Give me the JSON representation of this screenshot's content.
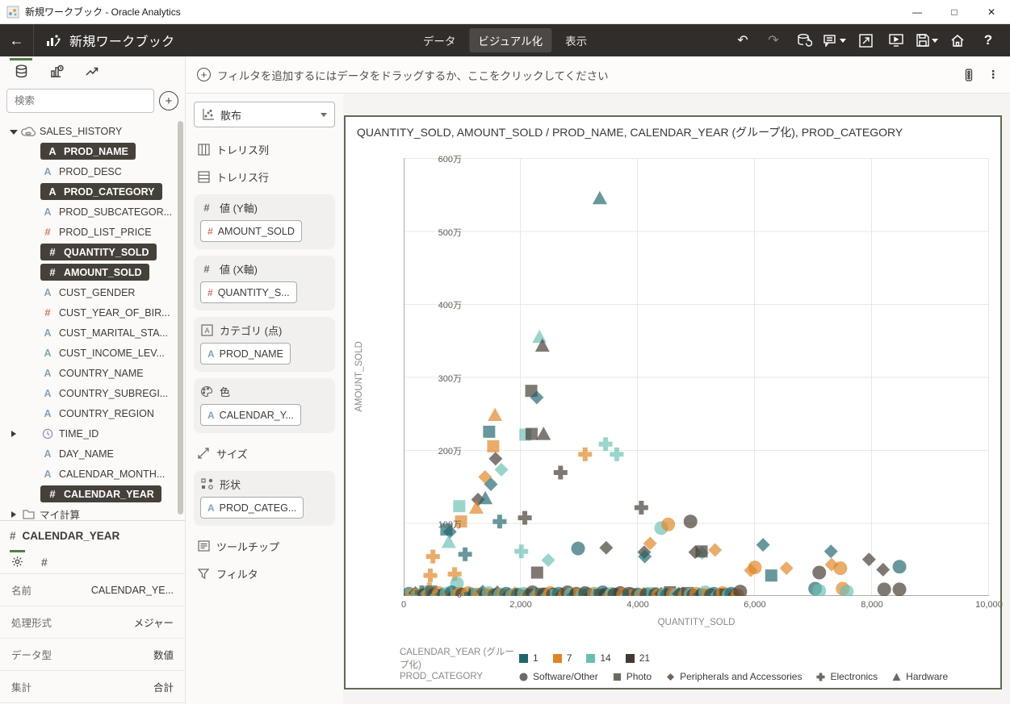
{
  "window": {
    "title": "新規ワークブック - Oracle Analytics",
    "controls": {
      "minimize": "—",
      "maximize": "□",
      "close": "✕"
    }
  },
  "header": {
    "title": "新規ワークブック",
    "tabs": [
      {
        "label": "データ",
        "active": false
      },
      {
        "label": "ビジュアル化",
        "active": true
      },
      {
        "label": "表示",
        "active": false
      }
    ],
    "icons": [
      "undo",
      "redo",
      "refresh-data",
      "comment",
      "open-window",
      "present",
      "save",
      "home",
      "help"
    ]
  },
  "sidebar": {
    "search_placeholder": "検索",
    "fields": [
      {
        "label": "SALES_HISTORY",
        "icon": "dataset",
        "caret": "down",
        "indent": 0,
        "selected": false
      },
      {
        "label": "PROD_NAME",
        "icon": "text",
        "indent": 1,
        "selected": true
      },
      {
        "label": "PROD_DESC",
        "icon": "text",
        "indent": 1,
        "selected": false
      },
      {
        "label": "PROD_CATEGORY",
        "icon": "text",
        "indent": 1,
        "selected": true
      },
      {
        "label": "PROD_SUBCATEGOR...",
        "icon": "text",
        "indent": 1,
        "selected": false
      },
      {
        "label": "PROD_LIST_PRICE",
        "icon": "number",
        "indent": 1,
        "selected": false
      },
      {
        "label": "QUANTITY_SOLD",
        "icon": "number",
        "indent": 1,
        "selected": true
      },
      {
        "label": "AMOUNT_SOLD",
        "icon": "number",
        "indent": 1,
        "selected": true
      },
      {
        "label": "CUST_GENDER",
        "icon": "text",
        "indent": 1,
        "selected": false
      },
      {
        "label": "CUST_YEAR_OF_BIR...",
        "icon": "number",
        "indent": 1,
        "selected": false
      },
      {
        "label": "CUST_MARITAL_STA...",
        "icon": "text",
        "indent": 1,
        "selected": false
      },
      {
        "label": "CUST_INCOME_LEV...",
        "icon": "text",
        "indent": 1,
        "selected": false
      },
      {
        "label": "COUNTRY_NAME",
        "icon": "text",
        "indent": 1,
        "selected": false
      },
      {
        "label": "COUNTRY_SUBREGI...",
        "icon": "text",
        "indent": 1,
        "selected": false
      },
      {
        "label": "COUNTRY_REGION",
        "icon": "text",
        "indent": 1,
        "selected": false
      },
      {
        "label": "TIME_ID",
        "icon": "time",
        "caret": "right",
        "indent": 1,
        "selected": false
      },
      {
        "label": "DAY_NAME",
        "icon": "text",
        "indent": 1,
        "selected": false
      },
      {
        "label": "CALENDAR_MONTH...",
        "icon": "text",
        "indent": 1,
        "selected": false
      },
      {
        "label": "CALENDAR_YEAR",
        "icon": "number",
        "indent": 1,
        "selected": true
      },
      {
        "label": "マイ計算",
        "icon": "folder",
        "caret": "right",
        "indent": 0,
        "selected": false
      }
    ]
  },
  "properties": {
    "title": "CALENDAR_YEAR",
    "rows": [
      {
        "label": "名前",
        "value": "CALENDAR_YE..."
      },
      {
        "label": "処理形式",
        "value": "メジャー"
      },
      {
        "label": "データ型",
        "value": "数値"
      },
      {
        "label": "集計",
        "value": "合計"
      }
    ]
  },
  "filter_bar": {
    "text": "フィルタを追加するにはデータをドラッグするか、ここをクリックしてください"
  },
  "grammar": {
    "viz_type": "散布",
    "shelves": [
      {
        "label": "トレリス列",
        "icon": "trellis-columns",
        "boxed": false,
        "pills": []
      },
      {
        "label": "トレリス行",
        "icon": "trellis-rows",
        "boxed": false,
        "pills": []
      },
      {
        "label": "値 (Y軸)",
        "icon": "number",
        "boxed": true,
        "pills": [
          {
            "icon": "number",
            "text": "AMOUNT_SOLD"
          }
        ]
      },
      {
        "label": "値 (X軸)",
        "icon": "number",
        "boxed": true,
        "pills": [
          {
            "icon": "number",
            "text": "QUANTITY_S..."
          }
        ]
      },
      {
        "label": "カテゴリ (点)",
        "icon": "category",
        "boxed": true,
        "pills": [
          {
            "icon": "text",
            "text": "PROD_NAME"
          }
        ]
      },
      {
        "label": "色",
        "icon": "color",
        "boxed": true,
        "pills": [
          {
            "icon": "text",
            "text": "CALENDAR_Y..."
          }
        ]
      },
      {
        "label": "サイズ",
        "icon": "size",
        "boxed": false,
        "pills": []
      },
      {
        "label": "形状",
        "icon": "shape",
        "boxed": true,
        "pills": [
          {
            "icon": "text",
            "text": "PROD_CATEG..."
          }
        ]
      },
      {
        "label": "ツールチップ",
        "icon": "tooltip",
        "boxed": false,
        "pills": []
      },
      {
        "label": "フィルタ",
        "icon": "filter",
        "boxed": false,
        "pills": []
      }
    ]
  },
  "colors": {
    "header_bg": "#312d2a",
    "accent_green": "#567c49",
    "selection_dark": "#45403a",
    "field_text_blue": "#84a3bd",
    "field_number_salmon": "#d3766d",
    "card_border": "#5e6b52"
  },
  "chart_data": {
    "type": "scatter",
    "title": "QUANTITY_SOLD, AMOUNT_SOLD / PROD_NAME, CALENDAR_YEAR (グループ化), PROD_CATEGORY",
    "xlabel": "QUANTITY_SOLD",
    "ylabel": "AMOUNT_SOLD",
    "xlim": [
      0,
      10000
    ],
    "ylim_10k": [
      0,
      600
    ],
    "x_ticks": [
      "0",
      "2,000",
      "4,000",
      "6,000",
      "8,000",
      "10,000"
    ],
    "y_ticks": [
      "0",
      "100万",
      "200万",
      "300万",
      "400万",
      "500万",
      "600万"
    ],
    "grid": true,
    "point_opacity": 0.68,
    "color_legend": {
      "label": "CALENDAR_YEAR (グループ化)",
      "entries": [
        {
          "label": "1",
          "color": "#21666F"
        },
        {
          "label": "7",
          "color": "#DE8425"
        },
        {
          "label": "14",
          "color": "#6BBFB2"
        },
        {
          "label": "21",
          "color": "#443931"
        }
      ]
    },
    "shape_legend": {
      "label": "PROD_CATEGORY",
      "entries": [
        {
          "label": "Software/Other",
          "shape": "circle"
        },
        {
          "label": "Photo",
          "shape": "square"
        },
        {
          "label": "Peripherals and Accessories",
          "shape": "diamond"
        },
        {
          "label": "Electronics",
          "shape": "plus"
        },
        {
          "label": "Hardware",
          "shape": "triangle"
        }
      ]
    },
    "point_format": [
      "quantity_sold",
      "amount_sold_in_10k_yen",
      "color_index_of_calendar_year_group",
      "shape_index_of_prod_category"
    ],
    "points": [
      [
        3350,
        545,
        0,
        4
      ],
      [
        2320,
        355,
        2,
        4
      ],
      [
        2370,
        343,
        3,
        4
      ],
      [
        2180,
        281,
        3,
        1
      ],
      [
        2275,
        272,
        0,
        2
      ],
      [
        1560,
        248,
        1,
        4
      ],
      [
        1460,
        225,
        0,
        1
      ],
      [
        2080,
        221,
        2,
        1
      ],
      [
        2185,
        222,
        3,
        1
      ],
      [
        2390,
        222,
        3,
        4
      ],
      [
        1530,
        205,
        1,
        1
      ],
      [
        3450,
        208,
        2,
        3
      ],
      [
        1570,
        188,
        3,
        2
      ],
      [
        3100,
        194,
        1,
        3
      ],
      [
        1670,
        173,
        2,
        2
      ],
      [
        2680,
        169,
        3,
        3
      ],
      [
        1390,
        163,
        1,
        2
      ],
      [
        1490,
        153,
        0,
        2
      ],
      [
        1270,
        132,
        3,
        2
      ],
      [
        1395,
        134,
        0,
        4
      ],
      [
        1240,
        121,
        1,
        4
      ],
      [
        950,
        123,
        2,
        1
      ],
      [
        980,
        102,
        1,
        1
      ],
      [
        1640,
        102,
        0,
        3
      ],
      [
        2070,
        107,
        3,
        3
      ],
      [
        730,
        91,
        0,
        1
      ],
      [
        790,
        88,
        0,
        2
      ],
      [
        770,
        74,
        2,
        4
      ],
      [
        1050,
        57,
        0,
        3
      ],
      [
        2010,
        61,
        2,
        3
      ],
      [
        2980,
        65,
        0,
        0
      ],
      [
        3460,
        66,
        3,
        2
      ],
      [
        2470,
        49,
        2,
        2
      ],
      [
        2280,
        32,
        3,
        1
      ],
      [
        455,
        28,
        1,
        3
      ],
      [
        870,
        30,
        1,
        3
      ],
      [
        440,
        9,
        1,
        3
      ],
      [
        500,
        54,
        1,
        3
      ],
      [
        910,
        17,
        2,
        0
      ],
      [
        3640,
        194,
        2,
        3
      ],
      [
        4060,
        121,
        3,
        3
      ],
      [
        4400,
        93,
        2,
        0
      ],
      [
        4520,
        98,
        1,
        0
      ],
      [
        4900,
        102,
        3,
        0
      ],
      [
        4210,
        72,
        1,
        2
      ],
      [
        4110,
        60,
        3,
        2
      ],
      [
        4120,
        54,
        0,
        2
      ],
      [
        4980,
        60,
        3,
        2
      ],
      [
        5100,
        59,
        2,
        2
      ],
      [
        5320,
        63,
        1,
        2
      ],
      [
        5090,
        61,
        3,
        1
      ],
      [
        6140,
        70,
        0,
        2
      ],
      [
        6000,
        39,
        1,
        0
      ],
      [
        5930,
        35,
        1,
        2
      ],
      [
        6280,
        28,
        0,
        1
      ],
      [
        6540,
        38,
        1,
        2
      ],
      [
        7100,
        32,
        3,
        0
      ],
      [
        7300,
        61,
        0,
        2
      ],
      [
        7310,
        43,
        1,
        2
      ],
      [
        7460,
        38,
        1,
        0
      ],
      [
        7950,
        50,
        3,
        2
      ],
      [
        8190,
        36,
        3,
        2
      ],
      [
        8470,
        40,
        0,
        0
      ],
      [
        7030,
        10,
        0,
        0
      ],
      [
        7100,
        7,
        2,
        0
      ],
      [
        7500,
        10,
        1,
        0
      ],
      [
        7570,
        6,
        2,
        0
      ],
      [
        8210,
        9,
        3,
        0
      ],
      [
        8470,
        9,
        3,
        0
      ],
      [
        60,
        1,
        1,
        3
      ],
      [
        90,
        3,
        0,
        0
      ],
      [
        130,
        2,
        2,
        1
      ],
      [
        160,
        1,
        1,
        0
      ],
      [
        200,
        4,
        3,
        2
      ],
      [
        230,
        1,
        2,
        0
      ],
      [
        270,
        2,
        1,
        1
      ],
      [
        310,
        5,
        0,
        3
      ],
      [
        350,
        1,
        3,
        0
      ],
      [
        390,
        3,
        2,
        2
      ],
      [
        430,
        1,
        1,
        0
      ],
      [
        470,
        6,
        0,
        1
      ],
      [
        520,
        2,
        3,
        0
      ],
      [
        560,
        1,
        2,
        2
      ],
      [
        600,
        4,
        1,
        0
      ],
      [
        650,
        2,
        0,
        2
      ],
      [
        690,
        1,
        3,
        1
      ],
      [
        730,
        3,
        2,
        0
      ],
      [
        780,
        1,
        1,
        2
      ],
      [
        820,
        5,
        0,
        0
      ],
      [
        860,
        2,
        3,
        2
      ],
      [
        900,
        1,
        2,
        1
      ],
      [
        950,
        3,
        1,
        0
      ],
      [
        1000,
        2,
        3,
        0
      ],
      [
        1050,
        1,
        2,
        2
      ],
      [
        1100,
        4,
        1,
        0
      ],
      [
        1150,
        2,
        0,
        3
      ],
      [
        1200,
        1,
        3,
        0
      ],
      [
        1250,
        3,
        2,
        1
      ],
      [
        1300,
        2,
        1,
        0
      ],
      [
        1350,
        6,
        0,
        2
      ],
      [
        1400,
        1,
        3,
        0
      ],
      [
        1450,
        4,
        2,
        0
      ],
      [
        1500,
        2,
        1,
        1
      ],
      [
        1550,
        1,
        0,
        0
      ],
      [
        1600,
        5,
        3,
        2
      ],
      [
        1650,
        2,
        2,
        0
      ],
      [
        1700,
        1,
        1,
        1
      ],
      [
        1750,
        3,
        0,
        0
      ],
      [
        1800,
        2,
        3,
        2
      ],
      [
        1850,
        1,
        2,
        0
      ],
      [
        1900,
        4,
        1,
        2
      ],
      [
        1950,
        2,
        0,
        0
      ],
      [
        2000,
        1,
        3,
        1
      ],
      [
        2050,
        3,
        2,
        0
      ],
      [
        2100,
        2,
        1,
        2
      ],
      [
        2150,
        1,
        0,
        0
      ],
      [
        2200,
        5,
        3,
        0
      ],
      [
        2250,
        2,
        2,
        2
      ],
      [
        2300,
        1,
        1,
        0
      ],
      [
        2350,
        3,
        0,
        1
      ],
      [
        2400,
        2,
        3,
        0
      ],
      [
        2450,
        1,
        2,
        2
      ],
      [
        2500,
        4,
        1,
        0
      ],
      [
        2550,
        2,
        3,
        0
      ],
      [
        2600,
        1,
        2,
        1
      ],
      [
        2650,
        3,
        0,
        0
      ],
      [
        2700,
        2,
        3,
        2
      ],
      [
        2750,
        1,
        1,
        0
      ],
      [
        2800,
        5,
        3,
        0
      ],
      [
        2850,
        2,
        2,
        0
      ],
      [
        2900,
        1,
        0,
        2
      ],
      [
        2950,
        3,
        3,
        0
      ],
      [
        3000,
        2,
        1,
        1
      ],
      [
        3050,
        1,
        2,
        0
      ],
      [
        3100,
        4,
        3,
        0
      ],
      [
        3150,
        2,
        0,
        0
      ],
      [
        3200,
        1,
        3,
        2
      ],
      [
        3250,
        3,
        1,
        0
      ],
      [
        3300,
        2,
        2,
        0
      ],
      [
        3350,
        1,
        3,
        1
      ],
      [
        3400,
        5,
        0,
        0
      ],
      [
        3450,
        2,
        3,
        0
      ],
      [
        3500,
        1,
        1,
        2
      ],
      [
        3550,
        3,
        2,
        0
      ],
      [
        3600,
        2,
        3,
        0
      ],
      [
        3650,
        1,
        0,
        1
      ],
      [
        3700,
        4,
        3,
        0
      ],
      [
        3750,
        2,
        1,
        0
      ],
      [
        3800,
        1,
        2,
        2
      ],
      [
        3850,
        3,
        3,
        0
      ],
      [
        3900,
        2,
        0,
        0
      ],
      [
        3950,
        1,
        1,
        1
      ],
      [
        4000,
        2,
        3,
        0
      ],
      [
        4050,
        1,
        2,
        0
      ],
      [
        4100,
        3,
        1,
        2
      ],
      [
        4150,
        2,
        3,
        0
      ],
      [
        4200,
        1,
        0,
        0
      ],
      [
        4250,
        4,
        2,
        1
      ],
      [
        4300,
        2,
        3,
        0
      ],
      [
        4350,
        1,
        1,
        0
      ],
      [
        4400,
        3,
        3,
        2
      ],
      [
        4450,
        2,
        2,
        0
      ],
      [
        4500,
        1,
        0,
        0
      ],
      [
        4550,
        5,
        3,
        1
      ],
      [
        4600,
        2,
        1,
        0
      ],
      [
        4650,
        1,
        2,
        0
      ],
      [
        4700,
        3,
        3,
        2
      ],
      [
        4750,
        2,
        0,
        0
      ],
      [
        4800,
        1,
        1,
        0
      ],
      [
        4850,
        4,
        3,
        1
      ],
      [
        4900,
        2,
        2,
        0
      ],
      [
        4950,
        1,
        3,
        0
      ],
      [
        5000,
        3,
        1,
        0
      ],
      [
        5050,
        2,
        0,
        2
      ],
      [
        5100,
        1,
        3,
        0
      ],
      [
        5150,
        5,
        2,
        0
      ],
      [
        5200,
        2,
        1,
        1
      ],
      [
        5250,
        1,
        3,
        0
      ],
      [
        5300,
        3,
        0,
        0
      ],
      [
        5350,
        2,
        2,
        2
      ],
      [
        5400,
        1,
        3,
        0
      ],
      [
        5450,
        4,
        1,
        0
      ],
      [
        5500,
        2,
        3,
        1
      ],
      [
        5550,
        1,
        2,
        0
      ],
      [
        5600,
        3,
        0,
        0
      ],
      [
        5650,
        2,
        3,
        2
      ],
      [
        5700,
        1,
        1,
        0
      ],
      [
        5750,
        6,
        3,
        0
      ]
    ]
  }
}
